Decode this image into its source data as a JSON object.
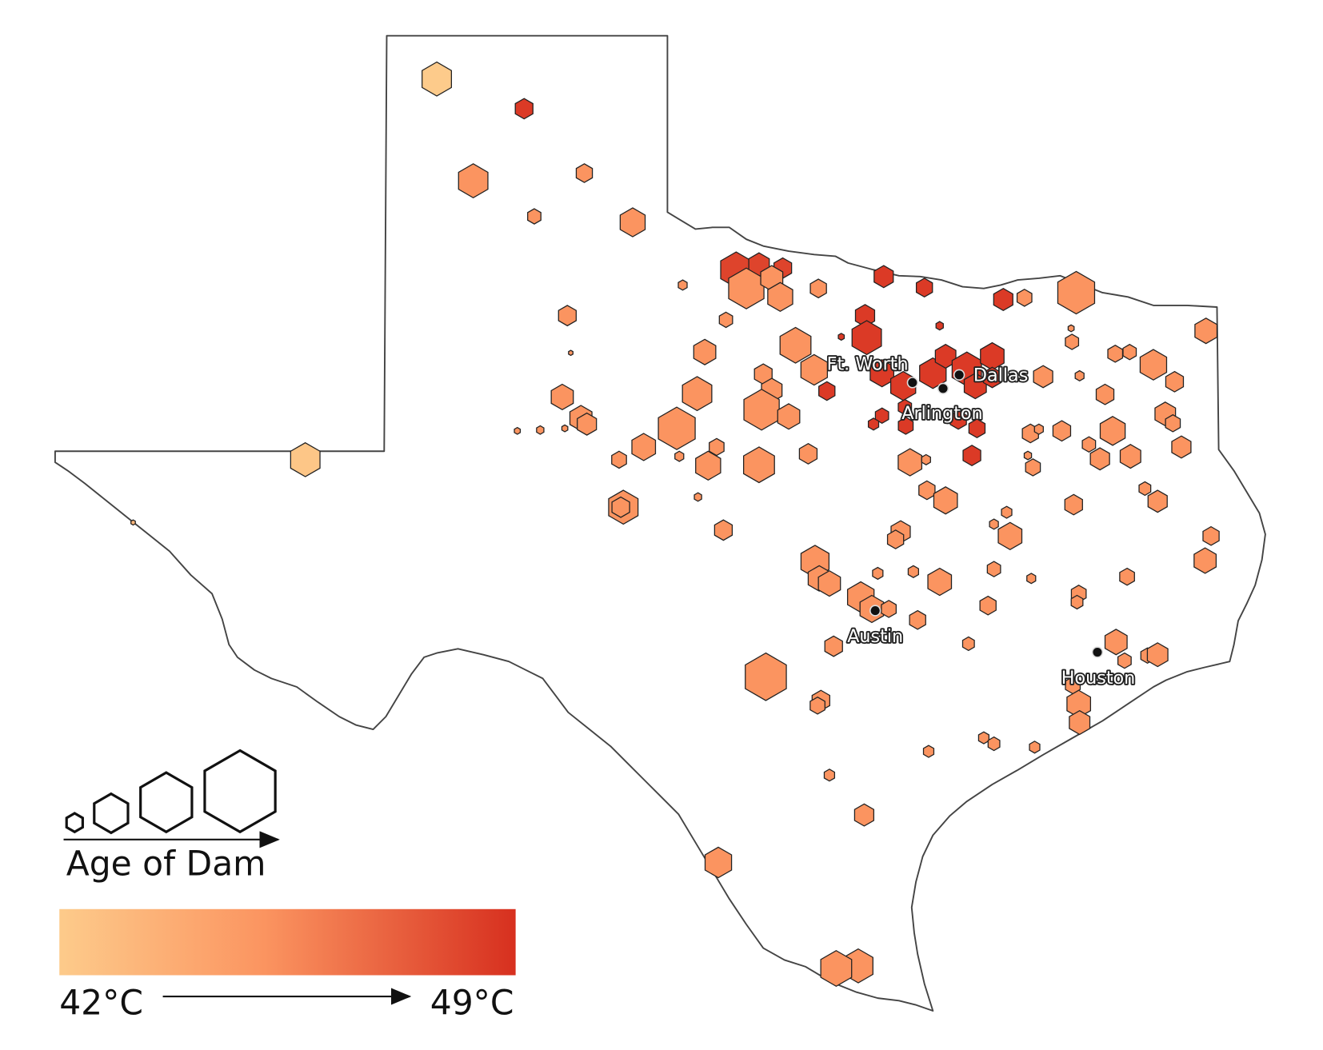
{
  "legend": {
    "size_title": "Age of Dam",
    "color_min": "42°C",
    "color_max": "49°C"
  },
  "cities": [
    {
      "name": "Ft. Worth"
    },
    {
      "name": "Dallas"
    },
    {
      "name": "Arlington"
    },
    {
      "name": "Austin"
    },
    {
      "name": "Houston"
    }
  ]
}
